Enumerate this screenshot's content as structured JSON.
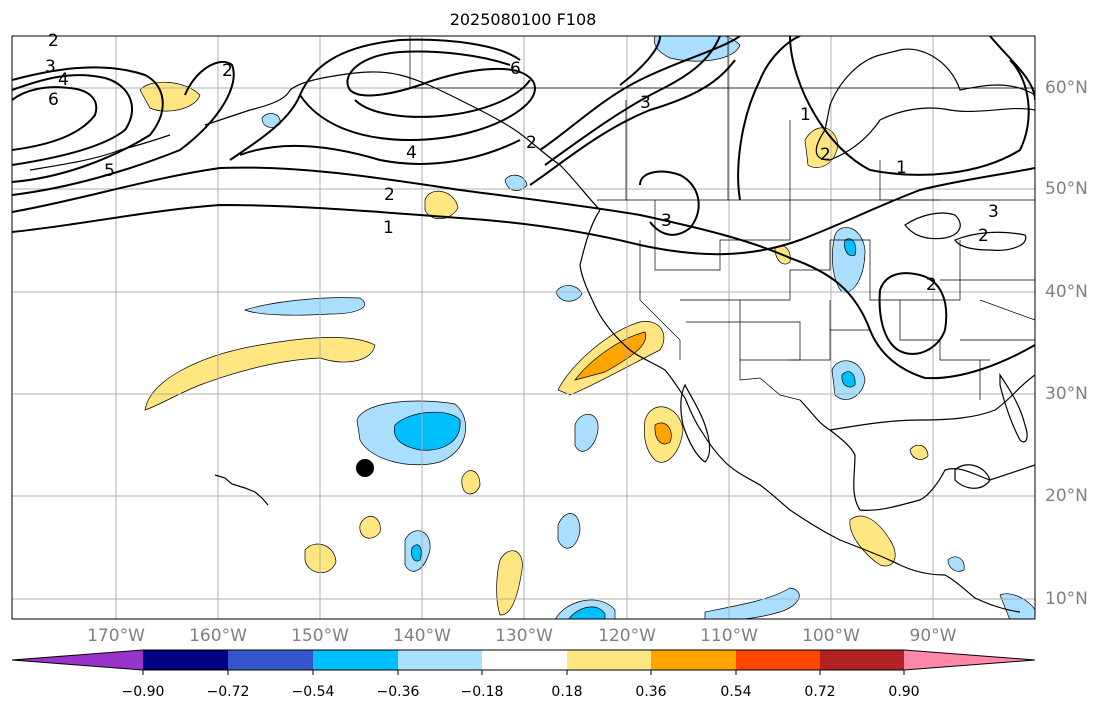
{
  "title": "2025080100 F108",
  "longitude_labels": [
    "170°W",
    "160°W",
    "150°W",
    "140°W",
    "130°W",
    "120°W",
    "110°W",
    "100°W",
    "90°W"
  ],
  "latitude_labels": [
    "60°N",
    "50°N",
    "40°N",
    "30°N",
    "20°N",
    "10°N"
  ],
  "contour_labels": [
    "2",
    "3",
    "4",
    "6",
    "2",
    "5",
    "2",
    "1",
    "4",
    "6",
    "3",
    "2",
    "1",
    "3",
    "2",
    "3",
    "2",
    "1",
    "2"
  ],
  "colorbar": {
    "tick_labels": [
      "−0.90",
      "−0.72",
      "−0.54",
      "−0.36",
      "−0.18",
      "0.18",
      "0.36",
      "0.54",
      "0.72",
      "0.90"
    ],
    "colors": [
      "#9933cc",
      "#000080",
      "#3355cc",
      "#00bfff",
      "#aadfff",
      "#ffffff",
      "#ffe680",
      "#ffa500",
      "#ff4500",
      "#b22222",
      "#ff88aa"
    ]
  },
  "marker": "black-dot"
}
